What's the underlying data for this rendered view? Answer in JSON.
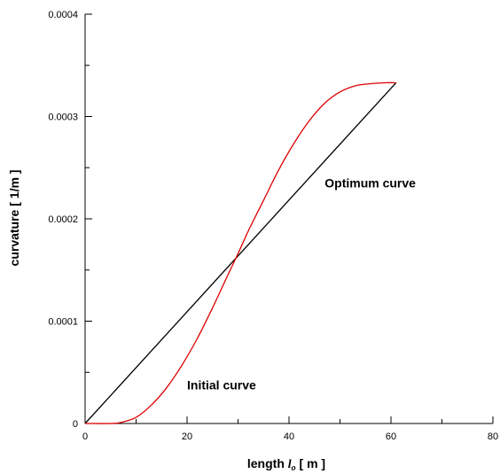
{
  "chart_data": {
    "type": "line",
    "xlabel": {
      "prefix": "length ",
      "var": "l",
      "sub": "o",
      "suffix": " [ m ]"
    },
    "ylabel": "curvature [ 1/m ]",
    "xlim": [
      0,
      80
    ],
    "ylim": [
      0,
      0.0004
    ],
    "x_ticks": [
      "0",
      "20",
      "40",
      "60",
      "80"
    ],
    "y_ticks": [
      "0",
      "0.0001",
      "0.0002",
      "0.0003",
      "0.0004"
    ],
    "grid": false,
    "legend": "none",
    "annotations": [
      {
        "text": "Optimum curve",
        "x": 47,
        "y": 0.000235
      },
      {
        "text": "Initial curve",
        "x": 20,
        "y": 3.75e-05
      }
    ],
    "series": [
      {
        "color": "#000000",
        "x": [
          0,
          61
        ],
        "y": [
          0,
          0.000333
        ]
      },
      {
        "color": "#dd0000",
        "x": [
          0,
          5,
          7,
          10,
          13,
          16,
          19,
          22,
          25,
          28,
          30,
          32,
          35,
          38,
          41,
          44,
          47,
          50,
          53,
          56,
          59,
          61
        ],
        "y": [
          0,
          0,
          1e-06,
          6e-06,
          1.8e-05,
          3.5e-05,
          5.7e-05,
          8.3e-05,
          0.000113,
          0.000145,
          0.000166,
          0.000188,
          0.000218,
          0.000248,
          0.000274,
          0.000296,
          0.000313,
          0.000324,
          0.00033,
          0.000332,
          0.000333,
          0.000333
        ]
      }
    ]
  }
}
